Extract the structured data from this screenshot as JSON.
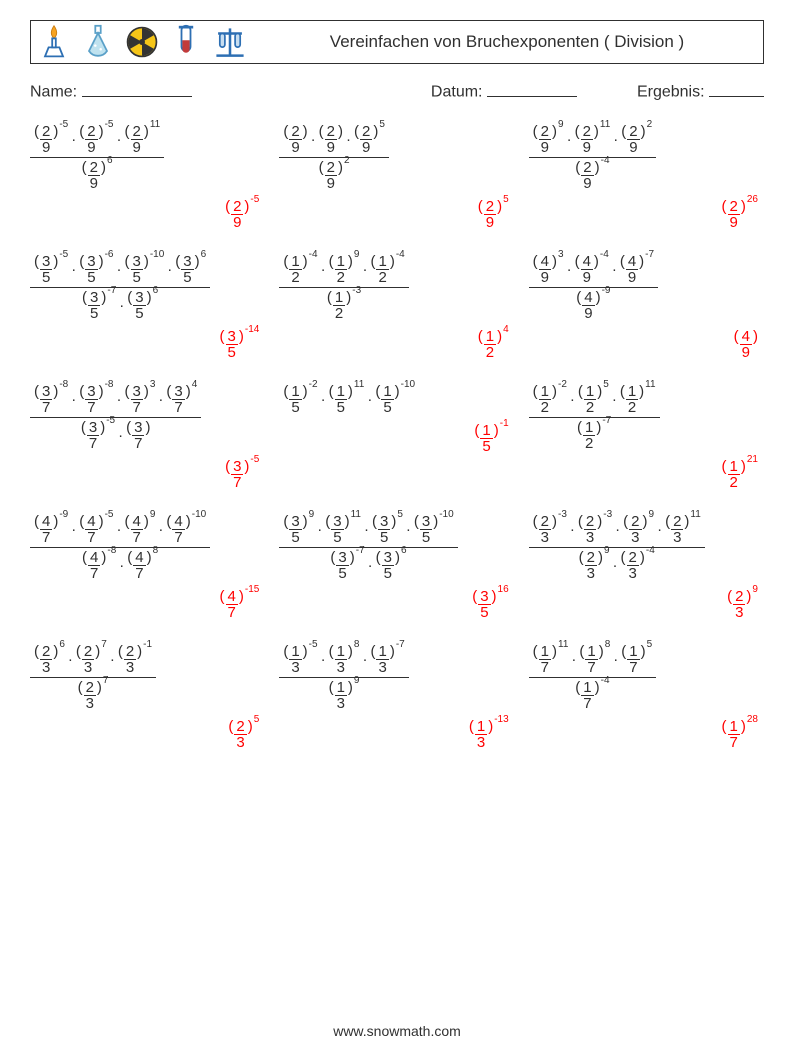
{
  "header": {
    "title": "Vereinfachen von Bruchexponenten ( Division )",
    "icons": [
      "burner-icon",
      "flask-icon",
      "radiation-icon",
      "test-tube-icon",
      "rack-icon"
    ],
    "icon_colors": {
      "burner": "#2d6fb3",
      "flask": "#5aa0c8",
      "radiation_ring": "#333333",
      "radiation_fill": "#f5c518",
      "tube": "#c23b3b",
      "rack": "#2d6fb3"
    }
  },
  "meta": {
    "name_label": "Name:",
    "date_label": "Datum:",
    "result_label": "Ergebnis:",
    "name_line_w": 110,
    "date_line_w": 90,
    "result_line_w": 55
  },
  "problems": [
    {
      "numTerms": [
        {
          "n": 2,
          "d": 9,
          "e": -5
        },
        {
          "n": 2,
          "d": 9,
          "e": -5
        },
        {
          "n": 2,
          "d": 9,
          "e": 11
        }
      ],
      "denTerms": [
        {
          "n": 2,
          "d": 9,
          "e": 6
        }
      ],
      "ans": {
        "n": 2,
        "d": 9,
        "e": -5
      }
    },
    {
      "numTerms": [
        {
          "n": 2,
          "d": 9,
          "e": null
        },
        {
          "n": 2,
          "d": 9,
          "e": null
        },
        {
          "n": 2,
          "d": 9,
          "e": 5
        }
      ],
      "denTerms": [
        {
          "n": 2,
          "d": 9,
          "e": 2
        }
      ],
      "ans": {
        "n": 2,
        "d": 9,
        "e": 5
      }
    },
    {
      "numTerms": [
        {
          "n": 2,
          "d": 9,
          "e": 9
        },
        {
          "n": 2,
          "d": 9,
          "e": 11
        },
        {
          "n": 2,
          "d": 9,
          "e": 2
        }
      ],
      "denTerms": [
        {
          "n": 2,
          "d": 9,
          "e": -4
        }
      ],
      "ans": {
        "n": 2,
        "d": 9,
        "e": 26
      }
    },
    {
      "numTerms": [
        {
          "n": 3,
          "d": 5,
          "e": -5
        },
        {
          "n": 3,
          "d": 5,
          "e": -6
        },
        {
          "n": 3,
          "d": 5,
          "e": -10
        },
        {
          "n": 3,
          "d": 5,
          "e": 6
        }
      ],
      "denTerms": [
        {
          "n": 3,
          "d": 5,
          "e": -7
        },
        {
          "n": 3,
          "d": 5,
          "e": 6
        }
      ],
      "ans": {
        "n": 3,
        "d": 5,
        "e": -14
      }
    },
    {
      "numTerms": [
        {
          "n": 1,
          "d": 2,
          "e": -4
        },
        {
          "n": 1,
          "d": 2,
          "e": 9
        },
        {
          "n": 1,
          "d": 2,
          "e": -4
        }
      ],
      "denTerms": [
        {
          "n": 1,
          "d": 2,
          "e": -3
        }
      ],
      "ans": {
        "n": 1,
        "d": 2,
        "e": 4
      }
    },
    {
      "numTerms": [
        {
          "n": 4,
          "d": 9,
          "e": 3
        },
        {
          "n": 4,
          "d": 9,
          "e": -4
        },
        {
          "n": 4,
          "d": 9,
          "e": -7
        }
      ],
      "denTerms": [
        {
          "n": 4,
          "d": 9,
          "e": -9
        }
      ],
      "ans": {
        "n": 4,
        "d": 9,
        "e": null
      }
    },
    {
      "numTerms": [
        {
          "n": 3,
          "d": 7,
          "e": -8
        },
        {
          "n": 3,
          "d": 7,
          "e": -8
        },
        {
          "n": 3,
          "d": 7,
          "e": 3
        },
        {
          "n": 3,
          "d": 7,
          "e": 4
        }
      ],
      "denTerms": [
        {
          "n": 3,
          "d": 7,
          "e": -5
        },
        {
          "n": 3,
          "d": 7,
          "e": null
        }
      ],
      "ans": {
        "n": 3,
        "d": 7,
        "e": -5
      }
    },
    {
      "numTerms": [
        {
          "n": 1,
          "d": 5,
          "e": -2
        },
        {
          "n": 1,
          "d": 5,
          "e": 11
        },
        {
          "n": 1,
          "d": 5,
          "e": -10
        }
      ],
      "denTerms": [],
      "ans": {
        "n": 1,
        "d": 5,
        "e": -1
      }
    },
    {
      "numTerms": [
        {
          "n": 1,
          "d": 2,
          "e": -2
        },
        {
          "n": 1,
          "d": 2,
          "e": 5
        },
        {
          "n": 1,
          "d": 2,
          "e": 11
        }
      ],
      "denTerms": [
        {
          "n": 1,
          "d": 2,
          "e": -7
        }
      ],
      "ans": {
        "n": 1,
        "d": 2,
        "e": 21
      }
    },
    {
      "numTerms": [
        {
          "n": 4,
          "d": 7,
          "e": -9
        },
        {
          "n": 4,
          "d": 7,
          "e": -5
        },
        {
          "n": 4,
          "d": 7,
          "e": 9
        },
        {
          "n": 4,
          "d": 7,
          "e": -10
        }
      ],
      "denTerms": [
        {
          "n": 4,
          "d": 7,
          "e": -8
        },
        {
          "n": 4,
          "d": 7,
          "e": 8
        }
      ],
      "ans": {
        "n": 4,
        "d": 7,
        "e": -15
      }
    },
    {
      "numTerms": [
        {
          "n": 3,
          "d": 5,
          "e": 9
        },
        {
          "n": 3,
          "d": 5,
          "e": 11
        },
        {
          "n": 3,
          "d": 5,
          "e": 5
        },
        {
          "n": 3,
          "d": 5,
          "e": -10
        }
      ],
      "denTerms": [
        {
          "n": 3,
          "d": 5,
          "e": -7
        },
        {
          "n": 3,
          "d": 5,
          "e": 6
        }
      ],
      "ans": {
        "n": 3,
        "d": 5,
        "e": 16
      }
    },
    {
      "numTerms": [
        {
          "n": 2,
          "d": 3,
          "e": -3
        },
        {
          "n": 2,
          "d": 3,
          "e": -3
        },
        {
          "n": 2,
          "d": 3,
          "e": 9
        },
        {
          "n": 2,
          "d": 3,
          "e": 11
        }
      ],
      "denTerms": [
        {
          "n": 2,
          "d": 3,
          "e": 9
        },
        {
          "n": 2,
          "d": 3,
          "e": -4
        }
      ],
      "ans": {
        "n": 2,
        "d": 3,
        "e": 9
      }
    },
    {
      "numTerms": [
        {
          "n": 2,
          "d": 3,
          "e": 6
        },
        {
          "n": 2,
          "d": 3,
          "e": 7
        },
        {
          "n": 2,
          "d": 3,
          "e": -1
        }
      ],
      "denTerms": [
        {
          "n": 2,
          "d": 3,
          "e": 7
        }
      ],
      "ans": {
        "n": 2,
        "d": 3,
        "e": 5
      }
    },
    {
      "numTerms": [
        {
          "n": 1,
          "d": 3,
          "e": -5
        },
        {
          "n": 1,
          "d": 3,
          "e": 8
        },
        {
          "n": 1,
          "d": 3,
          "e": -7
        }
      ],
      "denTerms": [
        {
          "n": 1,
          "d": 3,
          "e": 9
        }
      ],
      "ans": {
        "n": 1,
        "d": 3,
        "e": -13
      }
    },
    {
      "numTerms": [
        {
          "n": 1,
          "d": 7,
          "e": 11
        },
        {
          "n": 1,
          "d": 7,
          "e": 8
        },
        {
          "n": 1,
          "d": 7,
          "e": 5
        }
      ],
      "denTerms": [
        {
          "n": 1,
          "d": 7,
          "e": -4
        }
      ],
      "ans": {
        "n": 1,
        "d": 7,
        "e": 28
      }
    }
  ],
  "footer": "www.snowmath.com",
  "colors": {
    "text": "#303030",
    "answer": "#ff0000",
    "border": "#303030"
  }
}
